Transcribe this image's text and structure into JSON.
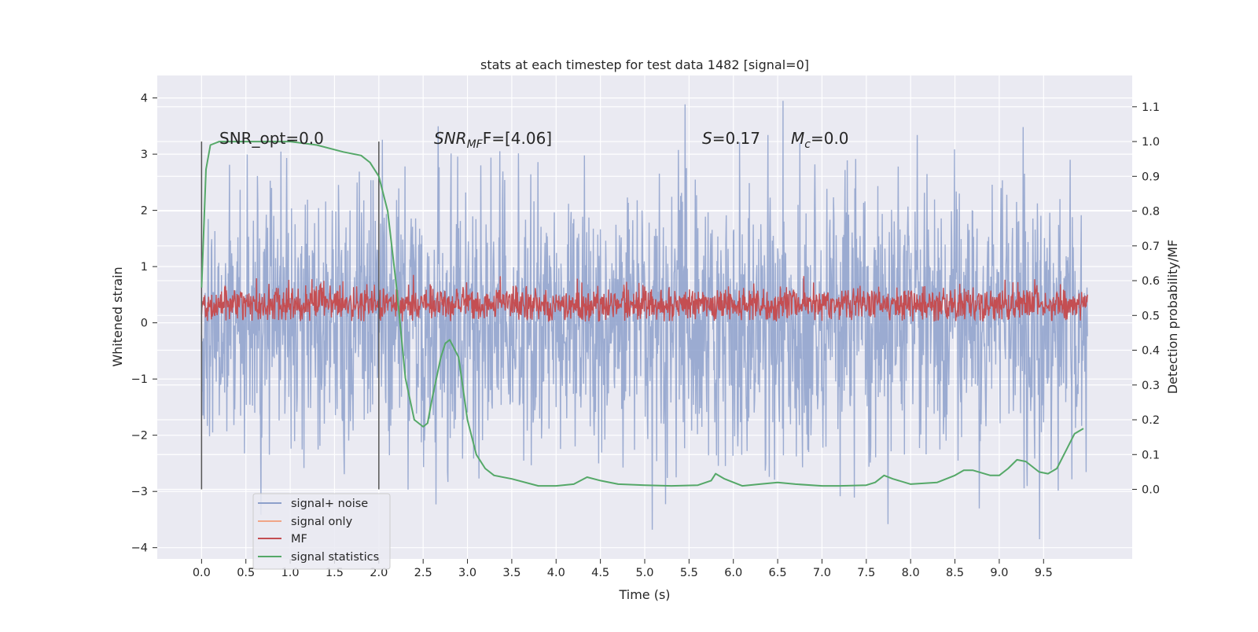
{
  "chart_data": {
    "type": "line",
    "title": "stats at each timestep for test data 1482 [signal=0]",
    "xlabel": "Time (s)",
    "ylabel": "Whitened strain",
    "y2label": "Detection probability/MF",
    "xlim": [
      -0.5,
      10.5
    ],
    "ylim": [
      -4.2,
      4.4
    ],
    "y2lim": [
      -0.2,
      1.19
    ],
    "xticks": [
      "0.0",
      "0.5",
      "1.0",
      "1.5",
      "2.0",
      "2.5",
      "3.0",
      "3.5",
      "4.0",
      "4.5",
      "5.0",
      "5.5",
      "6.0",
      "6.5",
      "7.0",
      "7.5",
      "8.0",
      "8.5",
      "9.0",
      "9.5"
    ],
    "yticks": [
      "4",
      "3",
      "2",
      "1",
      "0",
      "−1",
      "−2",
      "−3",
      "−4"
    ],
    "y2ticks": [
      "1.1",
      "1.0",
      "0.9",
      "0.8",
      "0.7",
      "0.6",
      "0.5",
      "0.4",
      "0.3",
      "0.2",
      "0.1",
      "0.0"
    ],
    "grid": true,
    "legend_position": "lower-left",
    "series": [
      {
        "name": "signal+ noise",
        "color": "#8da0cb",
        "axis": "left",
        "description_of_values": "noise between about -3 and 3, peaks to about 4"
      },
      {
        "name": "signal only",
        "color": "#f0a587",
        "axis": "left"
      },
      {
        "name": "MF",
        "color": "#c44e52",
        "axis": "left"
      },
      {
        "name": "signal statistics",
        "color": "#55a868",
        "axis": "right",
        "x": [
          0.0,
          0.05,
          0.1,
          0.2,
          0.4,
          1.0,
          1.3,
          1.6,
          1.8,
          1.9,
          2.0,
          2.1,
          2.2,
          2.3,
          2.4,
          2.5,
          2.55,
          2.6,
          2.7,
          2.75,
          2.8,
          2.9,
          3.0,
          3.1,
          3.2,
          3.3,
          3.5,
          3.8,
          4.0,
          4.2,
          4.35,
          4.5,
          4.7,
          5.0,
          5.3,
          5.6,
          5.75,
          5.8,
          5.9,
          6.1,
          6.3,
          6.5,
          6.7,
          7.0,
          7.2,
          7.5,
          7.6,
          7.7,
          7.8,
          8.0,
          8.3,
          8.5,
          8.6,
          8.7,
          8.9,
          9.0,
          9.1,
          9.2,
          9.3,
          9.45,
          9.55,
          9.65,
          9.75,
          9.85,
          9.95
        ],
        "y": [
          0.58,
          0.92,
          0.99,
          1.0,
          1.0,
          1.0,
          0.99,
          0.97,
          0.96,
          0.94,
          0.9,
          0.8,
          0.58,
          0.32,
          0.2,
          0.18,
          0.19,
          0.26,
          0.38,
          0.42,
          0.43,
          0.38,
          0.2,
          0.1,
          0.06,
          0.04,
          0.03,
          0.01,
          0.01,
          0.015,
          0.035,
          0.025,
          0.015,
          0.012,
          0.01,
          0.012,
          0.025,
          0.045,
          0.03,
          0.01,
          0.015,
          0.02,
          0.015,
          0.01,
          0.01,
          0.012,
          0.02,
          0.04,
          0.03,
          0.015,
          0.02,
          0.04,
          0.055,
          0.055,
          0.04,
          0.04,
          0.06,
          0.085,
          0.08,
          0.05,
          0.045,
          0.06,
          0.11,
          0.16,
          0.175
        ]
      }
    ],
    "vlines_x": [
      0.0,
      2.0
    ],
    "annotations": {
      "snr_opt": "SNR_opt=0.0",
      "snr_mf_base": "SNR",
      "snr_mf_sub": "MF",
      "snr_mf_rest": "F=[4.06]",
      "s_base": "S",
      "s_rest": "=0.17",
      "mc_base": "M",
      "mc_sub": "c",
      "mc_rest": "=0.0"
    }
  }
}
